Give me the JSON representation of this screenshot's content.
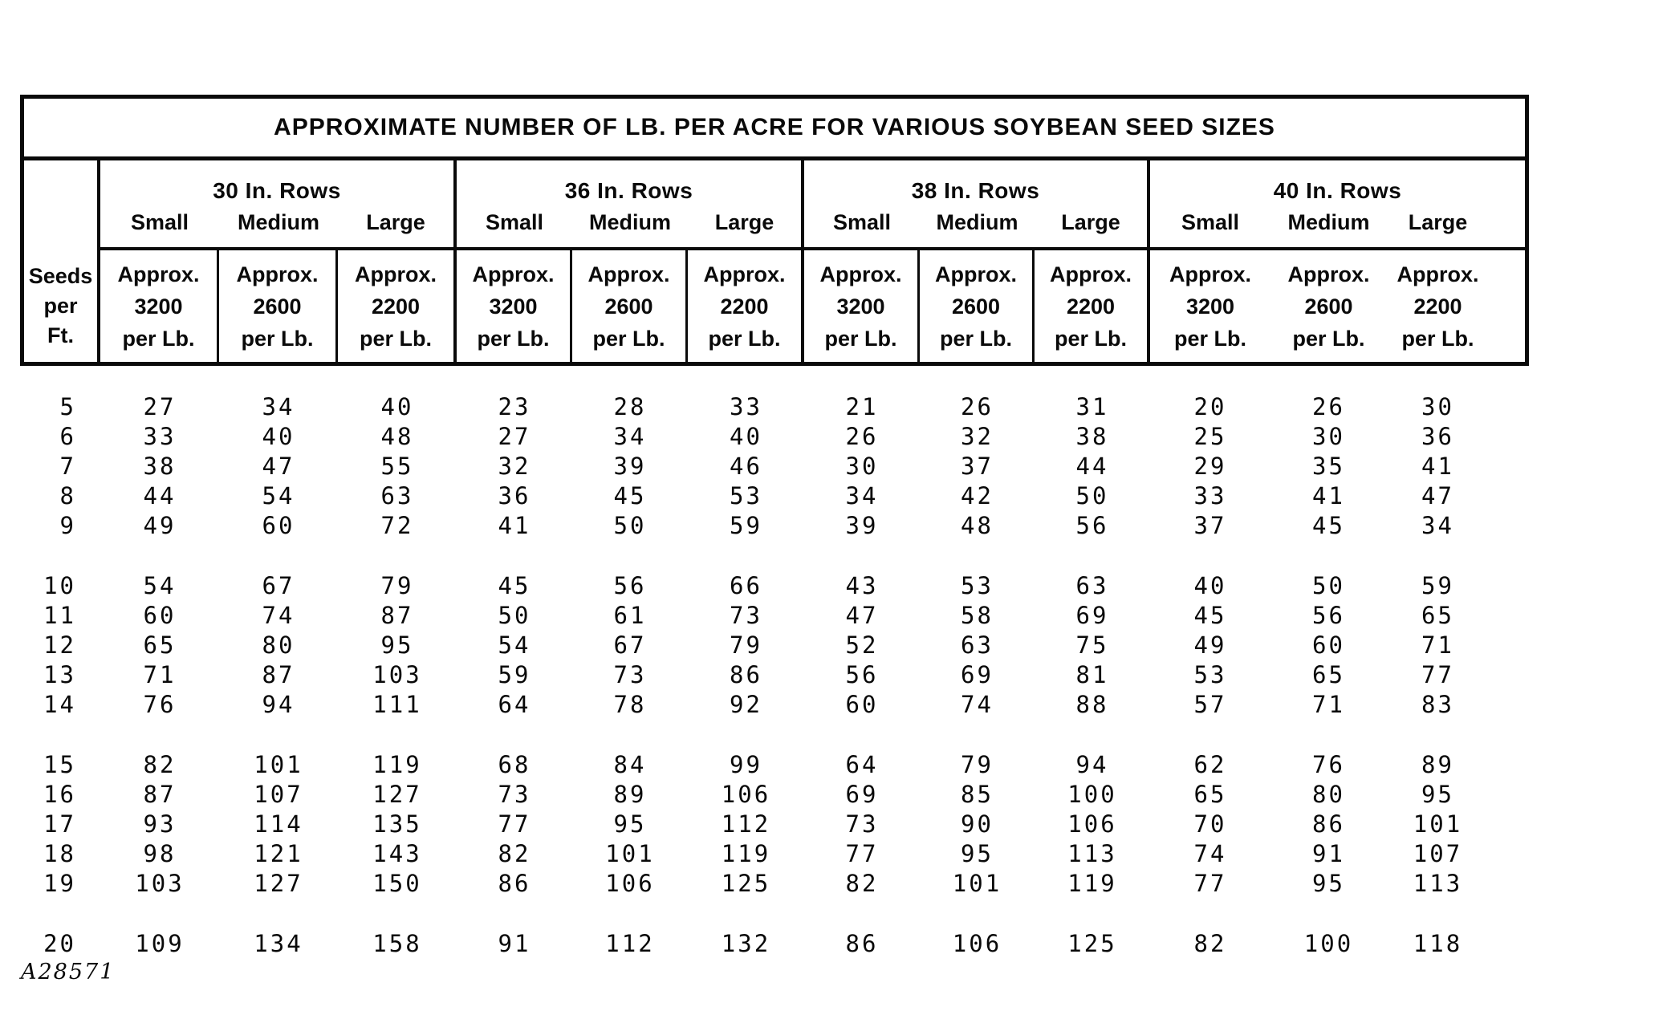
{
  "title": "APPROXIMATE NUMBER OF LB. PER ACRE FOR VARIOUS SOYBEAN SEED SIZES",
  "seeds_col_header_lines": [
    "Seeds",
    "per",
    "Ft."
  ],
  "groups": [
    {
      "label": "30 In. Rows",
      "columns": [
        {
          "size": "Small",
          "sub_lines": [
            "Approx.",
            "3200",
            "per Lb."
          ]
        },
        {
          "size": "Medium",
          "sub_lines": [
            "Approx.",
            "2600",
            "per Lb."
          ]
        },
        {
          "size": "Large",
          "sub_lines": [
            "Approx.",
            "2200",
            "per Lb."
          ]
        }
      ]
    },
    {
      "label": "36 In. Rows",
      "columns": [
        {
          "size": "Small",
          "sub_lines": [
            "Approx.",
            "3200",
            "per Lb."
          ]
        },
        {
          "size": "Medium",
          "sub_lines": [
            "Approx.",
            "2600",
            "per Lb."
          ]
        },
        {
          "size": "Large",
          "sub_lines": [
            "Approx.",
            "2200",
            "per Lb."
          ]
        }
      ]
    },
    {
      "label": "38 In. Rows",
      "columns": [
        {
          "size": "Small",
          "sub_lines": [
            "Approx.",
            "3200",
            "per Lb."
          ]
        },
        {
          "size": "Medium",
          "sub_lines": [
            "Approx.",
            "2600",
            "per Lb."
          ]
        },
        {
          "size": "Large",
          "sub_lines": [
            "Approx.",
            "2200",
            "per Lb."
          ]
        }
      ]
    },
    {
      "label": "40 In. Rows",
      "columns": [
        {
          "size": "Small",
          "sub_lines": [
            "Approx.",
            "3200",
            "per Lb."
          ]
        },
        {
          "size": "Medium",
          "sub_lines": [
            "Approx.",
            "2600",
            "per Lb."
          ]
        },
        {
          "size": "Large",
          "sub_lines": [
            "Approx.",
            "2200",
            "per Lb."
          ]
        }
      ]
    }
  ],
  "rows": [
    {
      "seeds_per_ft": "5",
      "values": [
        "27",
        "34",
        "40",
        "23",
        "28",
        "33",
        "21",
        "26",
        "31",
        "20",
        "26",
        "30"
      ]
    },
    {
      "seeds_per_ft": "6",
      "values": [
        "33",
        "40",
        "48",
        "27",
        "34",
        "40",
        "26",
        "32",
        "38",
        "25",
        "30",
        "36"
      ]
    },
    {
      "seeds_per_ft": "7",
      "values": [
        "38",
        "47",
        "55",
        "32",
        "39",
        "46",
        "30",
        "37",
        "44",
        "29",
        "35",
        "41"
      ]
    },
    {
      "seeds_per_ft": "8",
      "values": [
        "44",
        "54",
        "63",
        "36",
        "45",
        "53",
        "34",
        "42",
        "50",
        "33",
        "41",
        "47"
      ]
    },
    {
      "seeds_per_ft": "9",
      "values": [
        "49",
        "60",
        "72",
        "41",
        "50",
        "59",
        "39",
        "48",
        "56",
        "37",
        "45",
        "34"
      ]
    },
    {
      "seeds_per_ft": "10",
      "values": [
        "54",
        "67",
        "79",
        "45",
        "56",
        "66",
        "43",
        "53",
        "63",
        "40",
        "50",
        "59"
      ]
    },
    {
      "seeds_per_ft": "11",
      "values": [
        "60",
        "74",
        "87",
        "50",
        "61",
        "73",
        "47",
        "58",
        "69",
        "45",
        "56",
        "65"
      ]
    },
    {
      "seeds_per_ft": "12",
      "values": [
        "65",
        "80",
        "95",
        "54",
        "67",
        "79",
        "52",
        "63",
        "75",
        "49",
        "60",
        "71"
      ]
    },
    {
      "seeds_per_ft": "13",
      "values": [
        "71",
        "87",
        "103",
        "59",
        "73",
        "86",
        "56",
        "69",
        "81",
        "53",
        "65",
        "77"
      ]
    },
    {
      "seeds_per_ft": "14",
      "values": [
        "76",
        "94",
        "111",
        "64",
        "78",
        "92",
        "60",
        "74",
        "88",
        "57",
        "71",
        "83"
      ]
    },
    {
      "seeds_per_ft": "15",
      "values": [
        "82",
        "101",
        "119",
        "68",
        "84",
        "99",
        "64",
        "79",
        "94",
        "62",
        "76",
        "89"
      ]
    },
    {
      "seeds_per_ft": "16",
      "values": [
        "87",
        "107",
        "127",
        "73",
        "89",
        "106",
        "69",
        "85",
        "100",
        "65",
        "80",
        "95"
      ]
    },
    {
      "seeds_per_ft": "17",
      "values": [
        "93",
        "114",
        "135",
        "77",
        "95",
        "112",
        "73",
        "90",
        "106",
        "70",
        "86",
        "101"
      ]
    },
    {
      "seeds_per_ft": "18",
      "values": [
        "98",
        "121",
        "143",
        "82",
        "101",
        "119",
        "77",
        "95",
        "113",
        "74",
        "91",
        "107"
      ]
    },
    {
      "seeds_per_ft": "19",
      "values": [
        "103",
        "127",
        "150",
        "86",
        "106",
        "125",
        "82",
        "101",
        "119",
        "77",
        "95",
        "113"
      ]
    },
    {
      "seeds_per_ft": "20",
      "values": [
        "109",
        "134",
        "158",
        "91",
        "112",
        "132",
        "86",
        "106",
        "125",
        "82",
        "100",
        "118"
      ]
    }
  ],
  "row_group_breaks_after": [
    "9",
    "14",
    "19"
  ],
  "footer_code": "A28571"
}
